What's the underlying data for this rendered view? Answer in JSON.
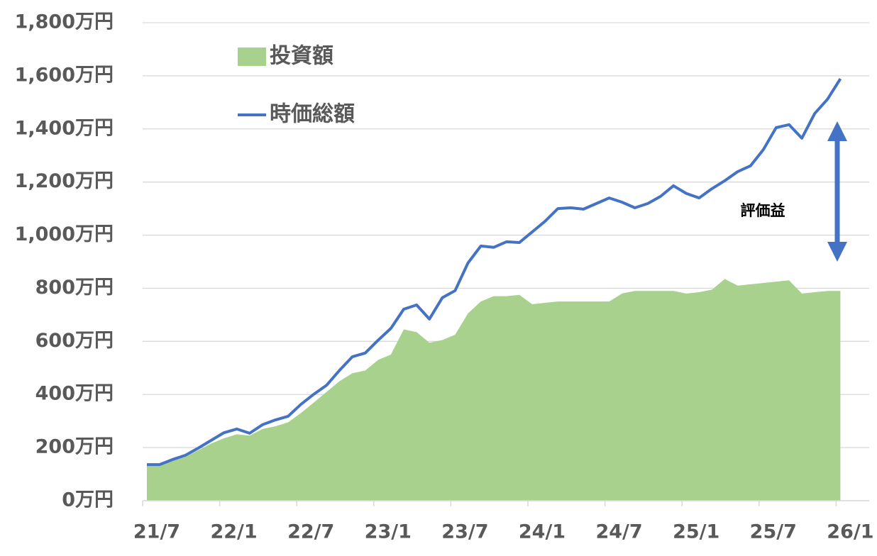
{
  "chart_data": {
    "type": "area-line",
    "categories": [
      "21/7",
      null,
      null,
      null,
      null,
      null,
      "22/1",
      null,
      null,
      null,
      null,
      null,
      "22/7",
      null,
      null,
      null,
      null,
      null,
      "23/1",
      null,
      null,
      null,
      null,
      null,
      "23/7",
      null,
      null,
      null,
      null,
      null,
      "24/1",
      null,
      null,
      null,
      null,
      null,
      "24/7",
      null,
      null,
      null,
      null,
      null,
      "25/1",
      null,
      null,
      null,
      null,
      null,
      "25/7",
      null,
      null,
      null,
      null,
      null,
      "26/1"
    ],
    "series": [
      {
        "name": "投資額",
        "kind": "area",
        "color": "#a9d18e",
        "values": [
          136,
          136,
          150,
          165,
          190,
          215,
          235,
          250,
          245,
          270,
          280,
          295,
          330,
          370,
          410,
          450,
          480,
          490,
          530,
          550,
          645,
          635,
          595,
          605,
          625,
          705,
          750,
          770,
          770,
          775,
          740,
          745,
          750,
          750,
          750,
          750,
          750,
          780,
          790,
          790,
          790,
          790,
          780,
          785,
          795,
          835,
          810,
          815,
          820,
          825,
          830,
          780,
          785,
          790,
          790
        ]
      },
      {
        "name": "時価総額",
        "kind": "line",
        "color": "#4472c4",
        "values": [
          136,
          136,
          155,
          171,
          198,
          227,
          256,
          270,
          254,
          286,
          304,
          318,
          363,
          401,
          435,
          491,
          542,
          556,
          604,
          649,
          721,
          737,
          684,
          764,
          791,
          895,
          959,
          954,
          975,
          972,
          1012,
          1052,
          1100,
          1103,
          1098,
          1119,
          1140,
          1124,
          1103,
          1119,
          1146,
          1186,
          1157,
          1140,
          1175,
          1205,
          1239,
          1261,
          1322,
          1405,
          1416,
          1365,
          1458,
          1512,
          1589
        ]
      }
    ],
    "ylim": [
      0,
      1800
    ],
    "yticks": [
      {
        "value": 0,
        "label": "0万円"
      },
      {
        "value": 200,
        "label": "200万円"
      },
      {
        "value": 400,
        "label": "400万円"
      },
      {
        "value": 600,
        "label": "600万円"
      },
      {
        "value": 800,
        "label": "800万円"
      },
      {
        "value": 1000,
        "label": "1,000万円"
      },
      {
        "value": 1200,
        "label": "1,200万円"
      },
      {
        "value": 1400,
        "label": "1,400万円"
      },
      {
        "value": 1600,
        "label": "1,600万円"
      },
      {
        "value": 1800,
        "label": "1,800万円"
      }
    ],
    "grid": true,
    "legend": "upper-left",
    "annotation": "評価益"
  }
}
